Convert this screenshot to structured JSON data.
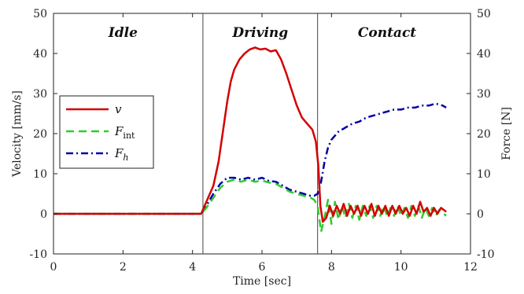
{
  "chart_data": {
    "type": "line",
    "xlabel": "Time [sec]",
    "ylabel_left": "Velocity [mm/s]",
    "ylabel_right": "Force [N]",
    "xlim": [
      0,
      12
    ],
    "ylim": [
      -10,
      50
    ],
    "xticks": [
      "0",
      "2",
      "4",
      "6",
      "8",
      "10",
      "12"
    ],
    "yticks": [
      "-10",
      "0",
      "10",
      "20",
      "30",
      "40",
      "50"
    ],
    "phase_boundaries": [
      4.3,
      7.6
    ],
    "phases": [
      {
        "label": "Idle",
        "x": 2.0
      },
      {
        "label": "Driving",
        "x": 5.95
      },
      {
        "label": "Contact",
        "x": 9.6
      }
    ],
    "legend": {
      "placement": "left",
      "entries": [
        {
          "symbol": "v",
          "sub": ""
        },
        {
          "symbol": "F",
          "sub": "int"
        },
        {
          "symbol": "F",
          "sub": "h"
        }
      ]
    },
    "series": [
      {
        "key": "v",
        "color": "#d40000",
        "style": "solid",
        "x": [
          0,
          0.5,
          1,
          1.5,
          2,
          2.5,
          3,
          3.5,
          4,
          4.25,
          4.35,
          4.45,
          4.6,
          4.75,
          4.9,
          5.0,
          5.1,
          5.2,
          5.35,
          5.5,
          5.65,
          5.8,
          5.95,
          6.1,
          6.25,
          6.4,
          6.55,
          6.7,
          6.85,
          7.0,
          7.15,
          7.3,
          7.45,
          7.55,
          7.62,
          7.68,
          7.75,
          7.85,
          7.95,
          8.05,
          8.15,
          8.25,
          8.35,
          8.45,
          8.55,
          8.65,
          8.75,
          8.85,
          8.95,
          9.05,
          9.15,
          9.25,
          9.35,
          9.45,
          9.55,
          9.65,
          9.75,
          9.85,
          9.95,
          10.05,
          10.15,
          10.25,
          10.35,
          10.45,
          10.55,
          10.65,
          10.75,
          10.85,
          10.95,
          11.05,
          11.15,
          11.3
        ],
        "y": [
          0,
          0,
          0,
          0,
          0,
          0,
          0,
          0,
          0,
          0,
          2,
          4,
          7,
          13,
          22,
          28,
          33,
          36,
          38.5,
          40,
          41,
          41.5,
          41,
          41.2,
          40.5,
          40.8,
          38.5,
          35,
          31,
          27,
          24,
          22.5,
          21,
          18,
          12,
          2,
          -2,
          -1,
          2,
          -0.5,
          2,
          0,
          2.5,
          -0.5,
          2,
          0,
          2,
          -0.5,
          2,
          0,
          2.5,
          -0.5,
          2,
          0,
          2,
          -0.5,
          2,
          0,
          2,
          0,
          1.5,
          -0.5,
          2,
          0,
          3,
          0.5,
          1.5,
          -0.5,
          1.5,
          0,
          1.5,
          0.5
        ]
      },
      {
        "key": "F_int",
        "color": "#2ecc2e",
        "style": "dash",
        "x": [
          0,
          1,
          2,
          3,
          4,
          4.25,
          4.4,
          4.6,
          4.8,
          5.0,
          5.2,
          5.4,
          5.6,
          5.8,
          6.0,
          6.2,
          6.4,
          6.6,
          6.8,
          7.0,
          7.2,
          7.4,
          7.5,
          7.6,
          7.7,
          7.8,
          7.9,
          8.0,
          8.1,
          8.2,
          8.3,
          8.4,
          8.5,
          8.6,
          8.7,
          8.8,
          8.9,
          9.0,
          9.1,
          9.2,
          9.3,
          9.4,
          9.5,
          9.6,
          9.7,
          9.8,
          9.9,
          10.0,
          10.1,
          10.2,
          10.3,
          10.4,
          10.5,
          10.6,
          10.7,
          10.8,
          10.9,
          11.0,
          11.1,
          11.3
        ],
        "y": [
          0,
          0,
          0,
          0,
          0,
          0,
          1.5,
          4,
          6.5,
          8,
          8.5,
          8,
          8.5,
          8,
          8.3,
          7.8,
          7.5,
          6.5,
          5.5,
          5,
          4.5,
          4,
          3.5,
          2,
          -4.5,
          -1,
          3.5,
          -2.5,
          3,
          -1.5,
          2,
          -1,
          2.5,
          -1,
          2,
          -1.5,
          2,
          -0.5,
          2,
          -1,
          2,
          -0.5,
          2,
          -0.5,
          1.5,
          -0.5,
          2,
          -0.5,
          1.5,
          -1,
          2,
          -0.5,
          2,
          -1,
          1.5,
          -0.5,
          1.5,
          -0.5,
          1,
          -0.5
        ]
      },
      {
        "key": "F_h",
        "color": "#0000a8",
        "style": "dashdot",
        "x": [
          0,
          1,
          2,
          3,
          4,
          4.25,
          4.4,
          4.6,
          4.8,
          5.0,
          5.2,
          5.4,
          5.6,
          5.8,
          6.0,
          6.2,
          6.4,
          6.6,
          6.8,
          7.0,
          7.2,
          7.4,
          7.5,
          7.6,
          7.7,
          7.8,
          7.9,
          8.0,
          8.2,
          8.4,
          8.6,
          8.8,
          9.0,
          9.2,
          9.4,
          9.6,
          9.8,
          10.0,
          10.2,
          10.4,
          10.6,
          10.8,
          11.0,
          11.2,
          11.3
        ],
        "y": [
          0,
          0,
          0,
          0,
          0,
          0,
          2,
          5,
          7.5,
          9,
          9,
          8.5,
          9,
          8.5,
          9,
          8.2,
          8,
          7,
          6,
          5.5,
          5,
          4.5,
          4.5,
          5,
          8,
          13,
          16.5,
          18.5,
          20.5,
          21.5,
          22.5,
          23,
          24,
          24.5,
          25,
          25.5,
          26,
          26,
          26.5,
          26.5,
          27,
          27,
          27.5,
          27,
          26.5
        ]
      }
    ]
  }
}
